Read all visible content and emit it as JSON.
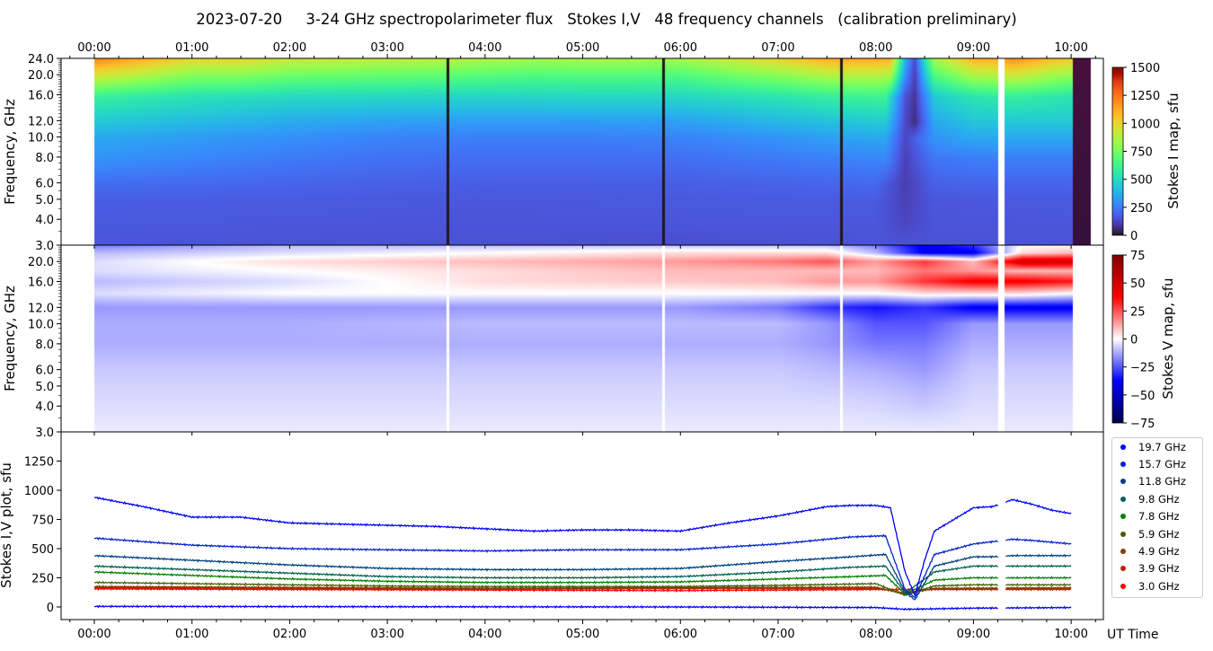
{
  "title": "2023-07-20     3-24 GHz spectropolarimeter flux   Stokes I,V   48 frequency channels   (calibration preliminary)",
  "chart_data": {
    "type": "heatmap",
    "time_ticks": [
      "00:00",
      "01:00",
      "02:00",
      "03:00",
      "04:00",
      "05:00",
      "06:00",
      "07:00",
      "08:00",
      "09:00",
      "10:00"
    ],
    "xlim_hours": [
      -0.34,
      10.33
    ],
    "xlabel": "UT Time",
    "panels": {
      "stokes_i_map": {
        "ylabel": "Frequency, GHz",
        "freq_ticks": [
          "3.0",
          "4.0",
          "5.0",
          "6.0",
          "8.0",
          "10.0",
          "12.0",
          "16.0",
          "20.0",
          "24.0"
        ],
        "freq_tick_values": [
          3,
          4,
          5,
          6,
          8,
          10,
          12,
          16,
          20,
          24
        ],
        "ylim": [
          3,
          24
        ],
        "colorbar_label": "Stokes I map, sfu",
        "colorbar_ticks": [
          "0",
          "250",
          "500",
          "750",
          "1000",
          "1250",
          "1500"
        ],
        "clim": [
          0,
          1500
        ],
        "top_factor_24ghz": 1.3,
        "dropouts_hours": [
          3.62,
          5.83,
          7.65
        ],
        "gap_hours": [
          9.25,
          9.32
        ],
        "tail_block": {
          "start": 10.02,
          "end": 10.2,
          "low": 120,
          "high": 300
        }
      },
      "stokes_v_map": {
        "ylabel": "Frequency, GHz",
        "freq_ticks": [
          "3.0",
          "4.0",
          "5.0",
          "6.0",
          "8.0",
          "10.0",
          "12.0",
          "16.0",
          "20.0"
        ],
        "freq_tick_values": [
          3,
          4,
          5,
          6,
          8,
          10,
          12,
          16,
          20
        ],
        "colorbar_label": "Stokes V map, sfu",
        "colorbar_ticks": [
          "−75",
          "−50",
          "−25",
          "0",
          "25",
          "50",
          "75"
        ],
        "clim": [
          -75,
          75
        ],
        "freqs": [
          3,
          4,
          6,
          8,
          10,
          12,
          14,
          16,
          18,
          20,
          22,
          24
        ],
        "times": [
          0,
          2,
          4,
          6,
          7,
          7.5,
          8,
          8.5,
          9,
          9.5,
          10
        ],
        "values": [
          [
            -3,
            -3,
            -3,
            -3,
            -3,
            -3,
            -3,
            -3,
            -3,
            -3,
            -3
          ],
          [
            -5,
            -5,
            -5,
            -5,
            -5,
            -5,
            -6,
            -8,
            -5,
            -5,
            -5
          ],
          [
            -8,
            -8,
            -8,
            -8,
            -8,
            -10,
            -12,
            -15,
            -8,
            -8,
            -8
          ],
          [
            -12,
            -12,
            -12,
            -12,
            -12,
            -15,
            -20,
            -20,
            -12,
            -12,
            -12
          ],
          [
            -12,
            -12,
            -10,
            -10,
            -10,
            -15,
            -25,
            -25,
            -15,
            -15,
            -15
          ],
          [
            -15,
            -15,
            -15,
            -15,
            -20,
            -30,
            -35,
            -30,
            -40,
            -40,
            -40
          ],
          [
            -5,
            0,
            0,
            0,
            0,
            0,
            0,
            5,
            5,
            5,
            0
          ],
          [
            -10,
            -5,
            5,
            8,
            10,
            15,
            15,
            30,
            40,
            40,
            35
          ],
          [
            -5,
            0,
            5,
            10,
            10,
            10,
            10,
            20,
            15,
            10,
            10
          ],
          [
            -5,
            5,
            10,
            15,
            20,
            25,
            15,
            30,
            10,
            50,
            50
          ],
          [
            -10,
            -5,
            0,
            5,
            5,
            5,
            -10,
            -40,
            -40,
            5,
            10
          ],
          [
            -20,
            -10,
            -10,
            -10,
            -10,
            -10,
            -20,
            -40,
            -30,
            0,
            0
          ]
        ]
      },
      "stokes_plot": {
        "type": "line",
        "ylabel": "Stokes I,V plot, sfu",
        "ylim": [
          -108,
          1500
        ],
        "y_ticks": [
          "0",
          "250",
          "500",
          "750",
          "1000",
          "1250"
        ],
        "y_tick_values": [
          0,
          250,
          500,
          750,
          1000,
          1250
        ],
        "series": [
          {
            "name": "19.7 GHz",
            "freq": 19.7,
            "color": "#0000ff",
            "t": [
              0,
              0.5,
              1,
              1.5,
              2,
              2.5,
              3,
              3.5,
              4,
              4.5,
              5,
              5.5,
              6,
              6.5,
              7,
              7.5,
              7.75,
              8,
              8.15,
              8.3,
              8.4,
              8.5,
              8.6,
              9,
              9.2,
              9.4,
              9.6,
              9.8,
              10
            ],
            "v": [
              940,
              860,
              770,
              770,
              720,
              710,
              700,
              690,
              670,
              650,
              660,
              660,
              650,
              720,
              780,
              860,
              870,
              870,
              850,
              300,
              100,
              400,
              650,
              850,
              860,
              920,
              880,
              830,
              800
            ]
          },
          {
            "name": "15.7 GHz",
            "freq": 15.7,
            "color": "#0022cc",
            "t": [
              0,
              1,
              2,
              3,
              4,
              5,
              6,
              7,
              7.75,
              8.1,
              8.3,
              8.4,
              8.6,
              9,
              9.2,
              9.4,
              9.6,
              10
            ],
            "v": [
              590,
              530,
              500,
              490,
              480,
              490,
              490,
              540,
              600,
              610,
              150,
              80,
              450,
              540,
              560,
              580,
              570,
              540
            ]
          },
          {
            "name": "11.8 GHz",
            "freq": 11.8,
            "color": "#004080",
            "t": [
              0,
              1,
              2,
              3,
              4,
              5,
              6,
              7,
              7.75,
              8.1,
              8.3,
              8.4,
              8.6,
              9,
              9.2,
              9.4,
              10
            ],
            "v": [
              440,
              400,
              360,
              330,
              320,
              320,
              330,
              390,
              430,
              450,
              130,
              60,
              350,
              430,
              430,
              440,
              440
            ]
          },
          {
            "name": "9.8 GHz",
            "freq": 9.8,
            "color": "#006050",
            "t": [
              0,
              1,
              2,
              3,
              4,
              5,
              6,
              7,
              7.75,
              8.1,
              8.3,
              8.6,
              9,
              10
            ],
            "v": [
              350,
              320,
              290,
              260,
              250,
              250,
              260,
              300,
              340,
              350,
              120,
              300,
              350,
              350
            ]
          },
          {
            "name": "7.8 GHz",
            "freq": 7.8,
            "color": "#008000",
            "t": [
              0,
              1,
              2,
              3,
              4,
              5,
              6,
              7,
              7.75,
              8.1,
              8.3,
              8.6,
              9,
              10
            ],
            "v": [
              300,
              270,
              240,
              220,
              210,
              210,
              215,
              240,
              260,
              270,
              110,
              230,
              250,
              250
            ]
          },
          {
            "name": "5.9 GHz",
            "freq": 5.9,
            "color": "#406000",
            "t": [
              0,
              1,
              2,
              3,
              4,
              5,
              6,
              7,
              8,
              8.3,
              8.6,
              9,
              10
            ],
            "v": [
              210,
              200,
              190,
              180,
              175,
              175,
              175,
              185,
              200,
              100,
              180,
              190,
              190
            ]
          },
          {
            "name": "4.9 GHz",
            "freq": 4.9,
            "color": "#804000",
            "t": [
              0,
              4,
              8,
              8.3,
              8.6,
              10
            ],
            "v": [
              175,
              160,
              170,
              110,
              160,
              165
            ]
          },
          {
            "name": "3.9 GHz",
            "freq": 3.9,
            "color": "#c02000",
            "t": [
              0,
              4,
              8,
              8.3,
              8.6,
              10
            ],
            "v": [
              165,
              155,
              160,
              120,
              155,
              160
            ]
          },
          {
            "name": "3.0 GHz",
            "freq": 3.0,
            "color": "#ff0000",
            "t": [
              0,
              4,
              6,
              8,
              10
            ],
            "v": [
              155,
              145,
              140,
              150,
              150
            ]
          },
          {
            "name": "Stokes V",
            "freq": 0,
            "color": "#0000ff",
            "t": [
              0,
              3,
              6,
              8,
              8.3,
              9,
              10
            ],
            "v": [
              5,
              2,
              0,
              -5,
              -20,
              -10,
              -5
            ]
          }
        ],
        "legend": [
          "19.7 GHz",
          "15.7 GHz",
          "11.8 GHz",
          "9.8 GHz",
          "7.8 GHz",
          "5.9 GHz",
          "4.9 GHz",
          "3.9 GHz",
          "3.0 GHz"
        ],
        "legend_position": "right"
      }
    }
  }
}
